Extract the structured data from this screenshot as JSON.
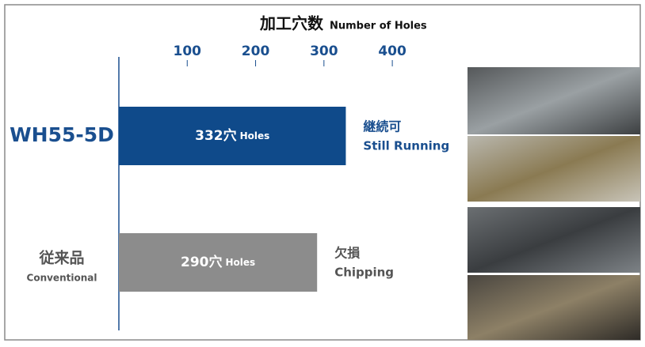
{
  "chart_data": {
    "type": "hbar",
    "title": "加工穴数",
    "subtitle": "Number of Holes",
    "categories": [
      "WH55-5D",
      "従来品"
    ],
    "category_subtitles": [
      null,
      "Conventional"
    ],
    "category_colors": [
      "#1a4f8f",
      "#555555"
    ],
    "values": [
      332,
      290
    ],
    "value_labels": [
      "332穴",
      "290穴"
    ],
    "value_unit": "Holes",
    "colors": [
      "#0f4a8a",
      "#8c8c8c"
    ],
    "status": [
      [
        "継続可",
        "Still Running"
      ],
      [
        "欠損",
        "Chipping"
      ]
    ],
    "status_colors": [
      "#1a4f8f",
      "#555555"
    ],
    "xlim": [
      0,
      510
    ],
    "xticks": [
      100,
      200,
      300,
      400
    ]
  }
}
